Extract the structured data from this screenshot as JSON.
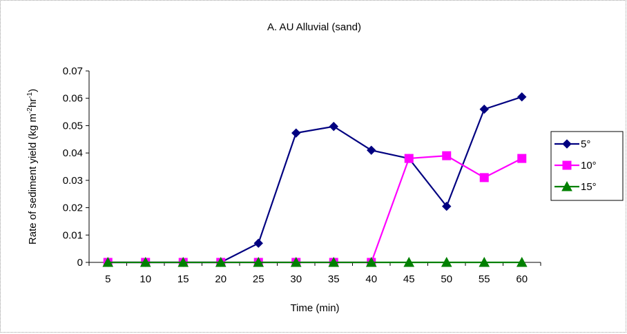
{
  "chart_data": {
    "type": "line",
    "title": "A. AU Alluvial (sand)",
    "xlabel": "Time (min)",
    "ylabel": {
      "prefix": "Rate of sediment yield (kg m",
      "sup1": "-2",
      "mid": "hr",
      "sup2": "-1",
      "suffix": ")"
    },
    "categories": [
      "5",
      "10",
      "15",
      "20",
      "25",
      "30",
      "35",
      "40",
      "45",
      "50",
      "55",
      "60"
    ],
    "ylim": [
      0,
      0.07
    ],
    "yticks": [
      "0",
      "0.01",
      "0.02",
      "0.03",
      "0.04",
      "0.05",
      "0.06",
      "0.07"
    ],
    "legend": "right",
    "series": [
      {
        "name": "5°",
        "color": "#000080",
        "marker": "diamond",
        "values": [
          0,
          0,
          0,
          0,
          0.007,
          0.0473,
          0.0497,
          0.041,
          0.038,
          0.0205,
          0.056,
          0.0605
        ]
      },
      {
        "name": "10°",
        "color": "#ff00ff",
        "marker": "square",
        "values": [
          0,
          0,
          0,
          0,
          0,
          0,
          0,
          0,
          0.038,
          0.039,
          0.031,
          0.038
        ]
      },
      {
        "name": "15°",
        "color": "#008000",
        "marker": "triangle",
        "values": [
          0,
          0,
          0,
          0,
          0,
          0,
          0,
          0,
          0,
          0,
          0,
          0
        ]
      }
    ]
  }
}
